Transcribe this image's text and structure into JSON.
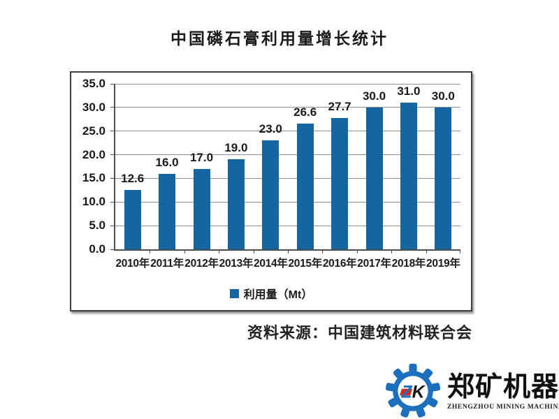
{
  "title": "中国磷石膏利用量增长统计",
  "chart_data": {
    "type": "bar",
    "title": "中国磷石膏利用量增长统计",
    "categories": [
      "2010年",
      "2011年",
      "2012年",
      "2013年",
      "2014年",
      "2015年",
      "2016年",
      "2017年",
      "2018年",
      "2019年"
    ],
    "values": [
      12.6,
      16.0,
      17.0,
      19.0,
      23.0,
      26.6,
      27.7,
      30.0,
      31.0,
      30.0
    ],
    "value_labels": [
      "12.6",
      "16.0",
      "17.0",
      "19.0",
      "23.0",
      "26.6",
      "27.7",
      "30.0",
      "31.0",
      "30.0"
    ],
    "legend": "利用量（Mt）",
    "legend_position": "bottom",
    "xlabel": "",
    "ylabel": "",
    "ylim": [
      0,
      35
    ],
    "yticks": [
      "35.0",
      "30.0",
      "25.0",
      "20.0",
      "15.0",
      "10.0",
      "5.0",
      "0.0"
    ],
    "grid": true,
    "bar_color": "#1565a0"
  },
  "source": "资料来源：中国建筑材料联合会",
  "logo": {
    "monogram_z": "Z",
    "monogram_k": "K",
    "name": "郑矿机器",
    "tagline": "ZHENGZHOU MINING MACHINERY",
    "gear_color": "#1d6fbe",
    "accent_color": "#d42b1e"
  }
}
